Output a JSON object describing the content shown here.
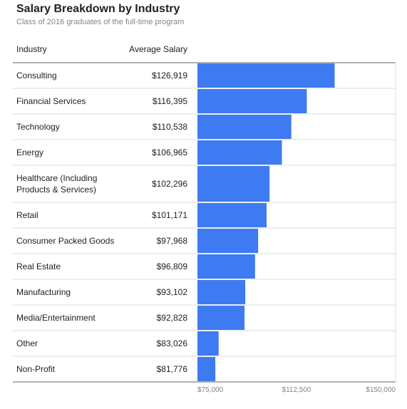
{
  "chart_data": {
    "type": "table",
    "title": "Salary Breakdown by Industry",
    "subtitle": "Class of 2016 graduates of the full-time program",
    "columns": [
      "Industry",
      "Average Salary"
    ],
    "rows": [
      {
        "category": [
          "Consulting"
        ],
        "value": 126919,
        "display": "$126,919"
      },
      {
        "category": [
          "Financial Services"
        ],
        "value": 116395,
        "display": "$116,395"
      },
      {
        "category": [
          "Technology"
        ],
        "value": 110538,
        "display": "$110,538"
      },
      {
        "category": [
          "Energy"
        ],
        "value": 106965,
        "display": "$106,965"
      },
      {
        "category": [
          "Healthcare (Including",
          "Products & Services)"
        ],
        "value": 102296,
        "display": "$102,296"
      },
      {
        "category": [
          "Retail"
        ],
        "value": 101171,
        "display": "$101,171"
      },
      {
        "category": [
          "Consumer Packed Goods"
        ],
        "value": 97968,
        "display": "$97,968"
      },
      {
        "category": [
          "Real Estate"
        ],
        "value": 96809,
        "display": "$96,809"
      },
      {
        "category": [
          "Manufacturing"
        ],
        "value": 93102,
        "display": "$93,102"
      },
      {
        "category": [
          "Media/Entertainment"
        ],
        "value": 92828,
        "display": "$92,828"
      },
      {
        "category": [
          "Other"
        ],
        "value": 83026,
        "display": "$83,026"
      },
      {
        "category": [
          "Non-Profit"
        ],
        "value": 81776,
        "display": "$81,776"
      }
    ],
    "bar_axis": {
      "xlim": [
        75000,
        150000
      ],
      "ticks": [
        {
          "value": 75000,
          "label": "$75,000"
        },
        {
          "value": 112500,
          "label": "$112,500"
        },
        {
          "value": 150000,
          "label": "$150,000"
        }
      ]
    },
    "grid": true,
    "colors": {
      "bar": "#3e7bf2",
      "text": "#202124",
      "muted": "#80868b",
      "divider": "#dadce0",
      "rule": "#5f6368"
    }
  }
}
